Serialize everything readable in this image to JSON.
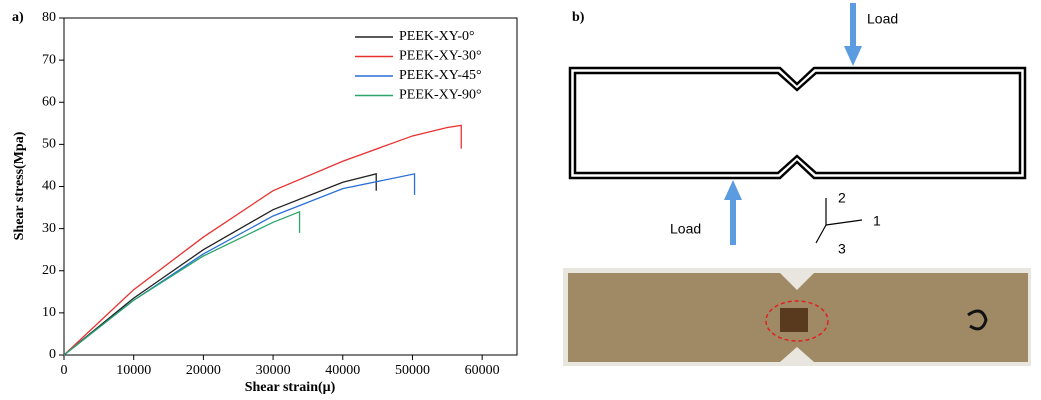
{
  "chart_data": {
    "type": "line",
    "panel_label": "a)",
    "xlabel": "Shear strain(μ)",
    "ylabel": "Shear stress(Mpa)",
    "xlim": [
      0,
      65000
    ],
    "xticks": [
      0,
      10000,
      20000,
      30000,
      40000,
      50000,
      60000
    ],
    "ylim": [
      0,
      80
    ],
    "yticks": [
      0,
      10,
      20,
      30,
      40,
      50,
      60,
      70,
      80
    ],
    "legend": "upper right",
    "series": [
      {
        "name": "PEEK-XY-0°",
        "color": "#222222",
        "x": [
          0,
          10000,
          20000,
          30000,
          40000,
          44800,
          44800
        ],
        "values": [
          0,
          13.5,
          25,
          34.5,
          41,
          43,
          39
        ]
      },
      {
        "name": "PEEK-XY-30°",
        "color": "#e8312f",
        "x": [
          0,
          10000,
          20000,
          30000,
          40000,
          50000,
          55000,
          57000,
          57000
        ],
        "values": [
          0,
          15.5,
          28,
          39,
          46,
          52,
          54,
          54.5,
          49
        ]
      },
      {
        "name": "PEEK-XY-45°",
        "color": "#2a6fd6",
        "x": [
          0,
          10000,
          20000,
          30000,
          40000,
          50300,
          50300
        ],
        "values": [
          0,
          13,
          24,
          33,
          39.5,
          43,
          38
        ]
      },
      {
        "name": "PEEK-XY-90°",
        "color": "#2aa66a",
        "x": [
          0,
          10000,
          20000,
          30000,
          33800,
          33800
        ],
        "values": [
          0,
          13,
          23.5,
          31.5,
          34,
          29
        ]
      }
    ]
  },
  "diagram": {
    "panel_label": "b)",
    "load_top": "Load",
    "load_bottom": "Load",
    "axis_1": "1",
    "axis_2": "2",
    "axis_3": "3"
  }
}
